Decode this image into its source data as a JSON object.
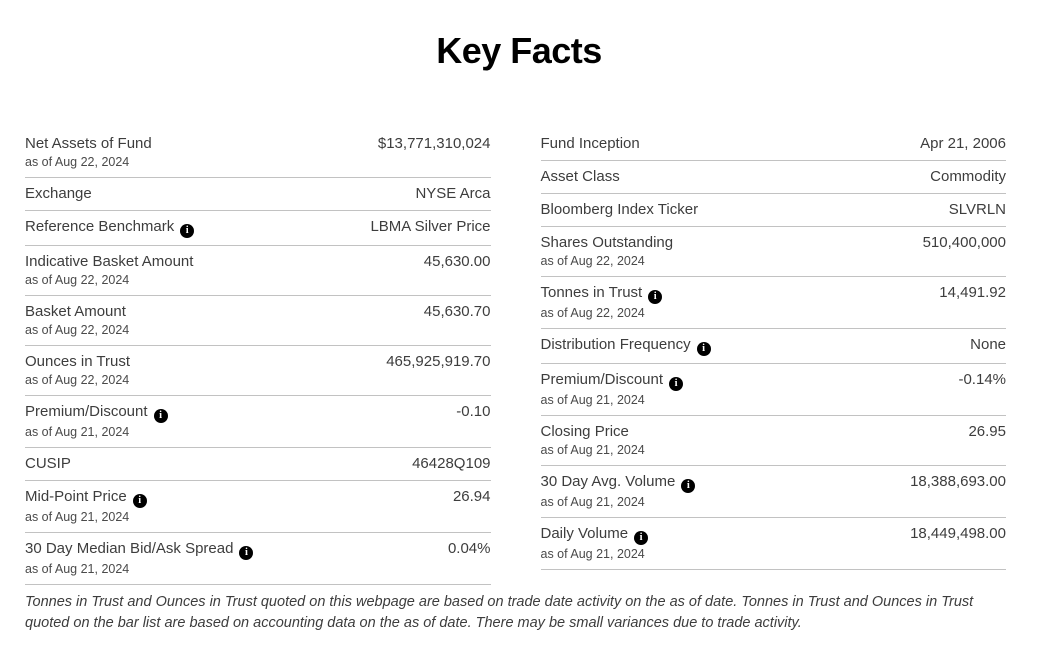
{
  "page": {
    "title": "Key Facts"
  },
  "icons": {
    "info_glyph": "i"
  },
  "colors": {
    "title_text": "#000000",
    "body_text": "#3d3d3d",
    "divider": "#c2c2c2",
    "info_icon_bg": "#000000",
    "info_icon_fg": "#ffffff"
  },
  "facts": {
    "left": [
      {
        "label": "Net Assets of Fund",
        "as_of": "as of Aug 22, 2024",
        "value": "$13,771,310,024"
      },
      {
        "label": "Exchange",
        "value": "NYSE Arca"
      },
      {
        "label": "Reference Benchmark",
        "value": "LBMA Silver Price"
      },
      {
        "label": "Indicative Basket Amount",
        "as_of": "as of Aug 22, 2024",
        "value": "45,630.00"
      },
      {
        "label": "Basket Amount",
        "as_of": "as of Aug 22, 2024",
        "value": "45,630.70"
      },
      {
        "label": "Ounces in Trust",
        "as_of": "as of Aug 22, 2024",
        "value": "465,925,919.70"
      },
      {
        "label": "Premium/Discount",
        "as_of": "as of Aug 21, 2024",
        "value": "-0.10"
      },
      {
        "label": "CUSIP",
        "value": "46428Q109"
      },
      {
        "label": "Mid-Point Price",
        "as_of": "as of Aug 21, 2024",
        "value": "26.94"
      },
      {
        "label": "30 Day Median Bid/Ask Spread",
        "as_of": "as of Aug 21, 2024",
        "value": "0.04%"
      }
    ],
    "right": [
      {
        "label": "Fund Inception",
        "value": "Apr 21, 2006"
      },
      {
        "label": "Asset Class",
        "value": "Commodity"
      },
      {
        "label": "Bloomberg Index Ticker",
        "value": "SLVRLN"
      },
      {
        "label": "Shares Outstanding",
        "as_of": "as of Aug 22, 2024",
        "value": "510,400,000"
      },
      {
        "label": "Tonnes in Trust",
        "as_of": "as of Aug 22, 2024",
        "value": "14,491.92"
      },
      {
        "label": "Distribution Frequency",
        "value": "None"
      },
      {
        "label": "Premium/Discount",
        "as_of": "as of Aug 21, 2024",
        "value": "-0.14%"
      },
      {
        "label": "Closing Price",
        "as_of": "as of Aug 21, 2024",
        "value": "26.95"
      },
      {
        "label": "30 Day Avg. Volume",
        "as_of": "as of Aug 21, 2024",
        "value": "18,388,693.00"
      },
      {
        "label": "Daily Volume",
        "as_of": "as of Aug 21, 2024",
        "value": "18,449,498.00"
      }
    ]
  },
  "footnote": "Tonnes in Trust and Ounces in Trust quoted on this webpage are based on trade date activity on the as of date. Tonnes in Trust and Ounces in Trust quoted on the bar list are based on accounting data on the as of date. There may be small variances due to trade activity."
}
